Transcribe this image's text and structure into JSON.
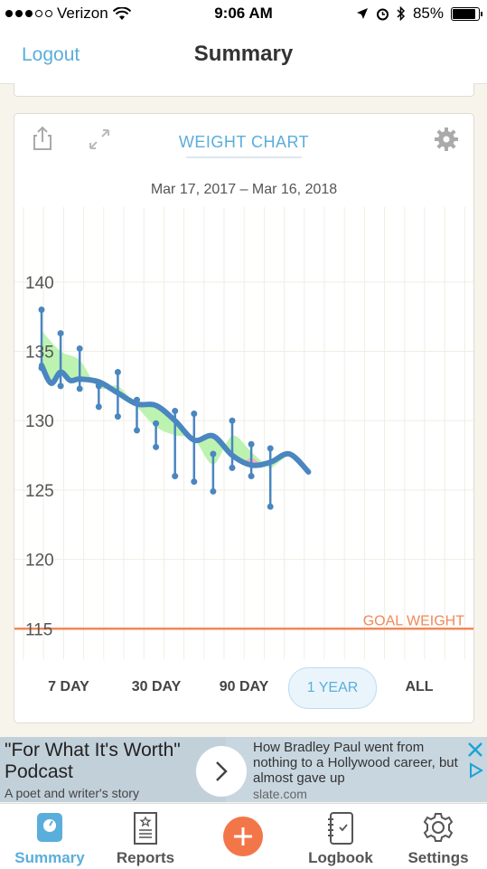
{
  "status_bar": {
    "carrier": "Verizon",
    "time": "9:06 AM",
    "battery": "85%",
    "signal_bars_filled": 3,
    "signal_bars_total": 5
  },
  "nav": {
    "left_label": "Logout",
    "title": "Summary"
  },
  "card": {
    "title": "WEIGHT CHART",
    "date_range": "Mar 17, 2017 – Mar 16, 2018"
  },
  "chart_data": {
    "type": "line",
    "y_ticks": [
      "140",
      "135",
      "130",
      "125",
      "120",
      "115"
    ],
    "y_tick_values": [
      140,
      135,
      130,
      125,
      120,
      115
    ],
    "ylim": [
      112.8,
      145.4
    ],
    "xlim": [
      0,
      21
    ],
    "goal": {
      "label": "GOAL WEIGHT",
      "value": 115
    },
    "trend_line": [
      [
        0,
        134.0
      ],
      [
        0.5,
        132.7
      ],
      [
        1,
        133.5
      ],
      [
        1.5,
        132.9
      ],
      [
        2,
        133.0
      ],
      [
        3,
        132.8
      ],
      [
        4,
        132.0
      ],
      [
        5,
        131.2
      ],
      [
        6,
        131.1
      ],
      [
        7,
        130.0
      ],
      [
        8,
        128.6
      ],
      [
        9,
        128.9
      ],
      [
        10,
        127.5
      ],
      [
        11,
        126.8
      ],
      [
        12,
        127.0
      ],
      [
        13,
        127.6
      ],
      [
        14,
        126.3
      ]
    ],
    "daily_ranges": [
      {
        "x": 0,
        "low": 133.8,
        "high": 138.0
      },
      {
        "x": 1,
        "low": 132.5,
        "high": 136.3
      },
      {
        "x": 2,
        "low": 132.3,
        "high": 135.2
      },
      {
        "x": 3,
        "low": 131.0,
        "high": 132.5
      },
      {
        "x": 4,
        "low": 130.3,
        "high": 133.5
      },
      {
        "x": 5,
        "low": 129.3,
        "high": 131.5
      },
      {
        "x": 6,
        "low": 128.1,
        "high": 129.8
      },
      {
        "x": 7,
        "low": 126.0,
        "high": 130.7
      },
      {
        "x": 8,
        "low": 125.6,
        "high": 130.5
      },
      {
        "x": 9,
        "low": 124.9,
        "high": 127.6
      },
      {
        "x": 10,
        "low": 126.6,
        "high": 130.0
      },
      {
        "x": 11,
        "low": 126.0,
        "high": 128.3
      },
      {
        "x": 12,
        "low": 123.8,
        "high": 128.0
      }
    ],
    "range_buttons": [
      "7 DAY",
      "30 DAY",
      "90 DAY",
      "1 YEAR",
      "ALL"
    ],
    "active_range": "1 YEAR",
    "colors": {
      "trend": "#4a86c0",
      "above_fill": "#b6f2a8",
      "below_fill": "#f5b3bd",
      "goal": "#f0895a"
    }
  },
  "ad": {
    "headline": "\"For What It's Worth\" Podcast",
    "subtitle": "A poet and writer's story",
    "body": "How Bradley Paul went from nothing to a Hollywood career, but almost gave up",
    "domain": "slate.com"
  },
  "tabs": [
    {
      "label": "Summary",
      "icon": "scale-icon",
      "active": true
    },
    {
      "label": "Reports",
      "icon": "report-icon",
      "active": false
    },
    {
      "label": "",
      "icon": "add-icon",
      "active": false
    },
    {
      "label": "Logbook",
      "icon": "logbook-icon",
      "active": false
    },
    {
      "label": "Settings",
      "icon": "gear-icon",
      "active": false
    }
  ]
}
